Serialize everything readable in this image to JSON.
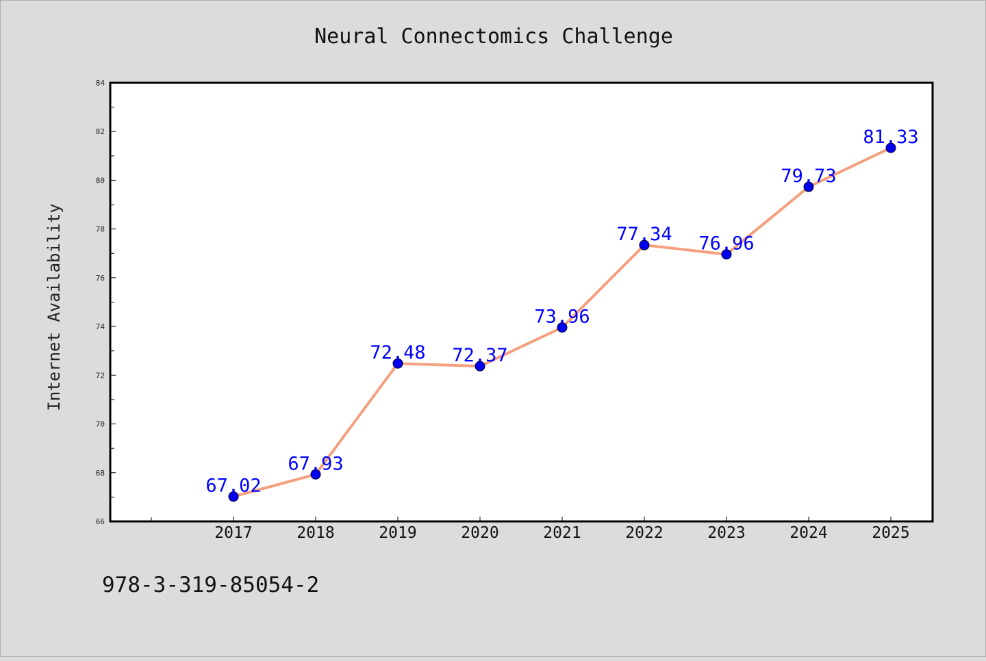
{
  "chart_data": {
    "type": "line",
    "title": "Neural Connectomics Challenge",
    "xlabel": "",
    "ylabel": "Internet Availability",
    "categories": [
      "2017",
      "2018",
      "2019",
      "2020",
      "2021",
      "2022",
      "2023",
      "2024",
      "2025"
    ],
    "series": [
      {
        "values": [
          67.02,
          67.93,
          72.48,
          72.37,
          73.96,
          77.34,
          76.96,
          79.73,
          81.33
        ],
        "labels": [
          "67.02",
          "67.93",
          "72.48",
          "72.37",
          "73.96",
          "77.34",
          "76.96",
          "79.73",
          "81.33"
        ]
      }
    ],
    "ylim": [
      66,
      84
    ],
    "yticks": [
      "66",
      "68",
      "70",
      "72",
      "74",
      "76",
      "78",
      "80",
      "82",
      "84"
    ],
    "grid": false,
    "line_color": "#f4a07e",
    "marker_color": "#0000ee",
    "label_color": "#0000ff"
  },
  "footer": {
    "isbn": "978-3-319-85054-2"
  }
}
